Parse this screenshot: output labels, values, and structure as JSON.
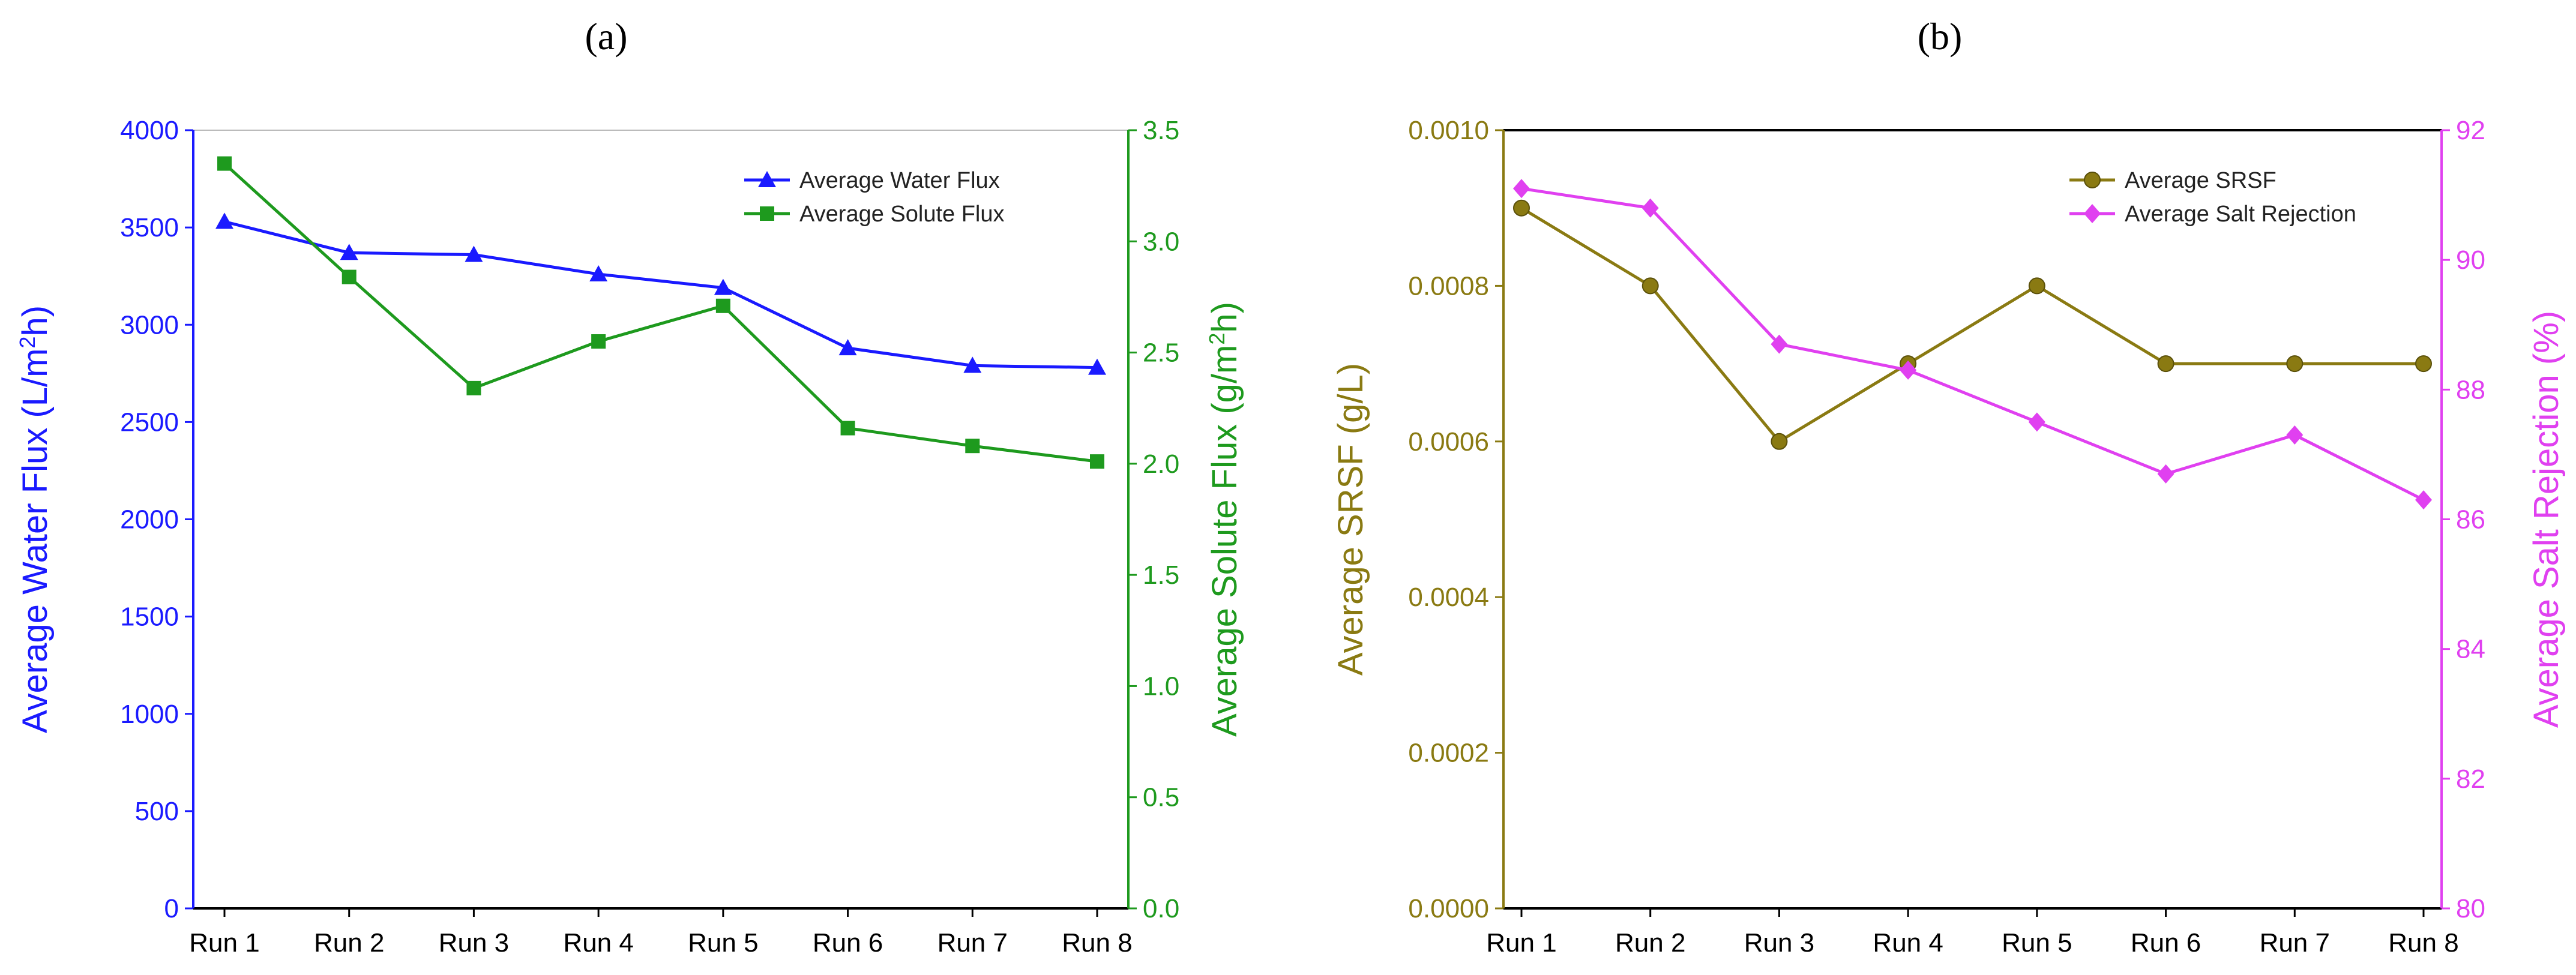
{
  "chart_data": [
    {
      "panel": "(a)",
      "type": "line",
      "categories": [
        "Run 1",
        "Run 2",
        "Run 3",
        "Run 4",
        "Run 5",
        "Run 6",
        "Run 7",
        "Run 8"
      ],
      "y_left": {
        "label": "Average Water Flux (L/m2h)",
        "label_main": "Average Water Flux (L/m",
        "label_sup": "2",
        "label_end": "h)",
        "ylim": [
          0,
          4000
        ],
        "ticks": [
          0,
          500,
          1000,
          1500,
          2000,
          2500,
          3000,
          3500,
          4000
        ],
        "color": "#1a1aff"
      },
      "y_right": {
        "label": "Average Solute Flux (g/m2h)",
        "label_main": "Average Solute Flux (g/m",
        "label_sup": "2",
        "label_end": "h)",
        "ylim": [
          0,
          3.5
        ],
        "ticks": [
          "0.0",
          "0.5",
          "1.0",
          "1.5",
          "2.0",
          "2.5",
          "3.0",
          "3.5"
        ],
        "color": "#1e9a1e"
      },
      "series": [
        {
          "name": "Average Water Flux",
          "axis": "left",
          "marker": "triangle",
          "color": "#1a1aff",
          "values": [
            3530,
            3370,
            3360,
            3260,
            3190,
            2880,
            2790,
            2780
          ]
        },
        {
          "name": "Average Solute Flux",
          "axis": "right",
          "marker": "square",
          "color": "#1e9a1e",
          "values": [
            3.35,
            2.84,
            2.34,
            2.55,
            2.71,
            2.16,
            2.08,
            2.01
          ]
        }
      ],
      "legend_position": "top-right"
    },
    {
      "panel": "(b)",
      "type": "line",
      "categories": [
        "Run 1",
        "Run 2",
        "Run 3",
        "Run 4",
        "Run 5",
        "Run 6",
        "Run 7",
        "Run 8"
      ],
      "y_left": {
        "label": "Average SRSF (g/L)",
        "ylim": [
          0,
          0.001
        ],
        "ticks": [
          "0.0000",
          "0.0002",
          "0.0004",
          "0.0006",
          "0.0008",
          "0.0010"
        ],
        "color": "#8a7a12"
      },
      "y_right": {
        "label": "Average Salt Rejection (%)",
        "ylim": [
          80,
          92
        ],
        "ticks": [
          "80",
          "82",
          "84",
          "86",
          "88",
          "90",
          "92"
        ],
        "color": "#e040f0"
      },
      "series": [
        {
          "name": "Average SRSF",
          "axis": "left",
          "marker": "circle",
          "color": "#8a7a12",
          "values": [
            0.0009,
            0.0008,
            0.0006,
            0.0007,
            0.0008,
            0.0007,
            0.0007,
            0.0007
          ]
        },
        {
          "name": "Average Salt Rejection",
          "axis": "right",
          "marker": "diamond",
          "color": "#e040f0",
          "values": [
            91.1,
            90.8,
            88.7,
            88.3,
            87.5,
            86.7,
            87.3,
            86.3
          ]
        }
      ],
      "legend_position": "top-right"
    }
  ]
}
